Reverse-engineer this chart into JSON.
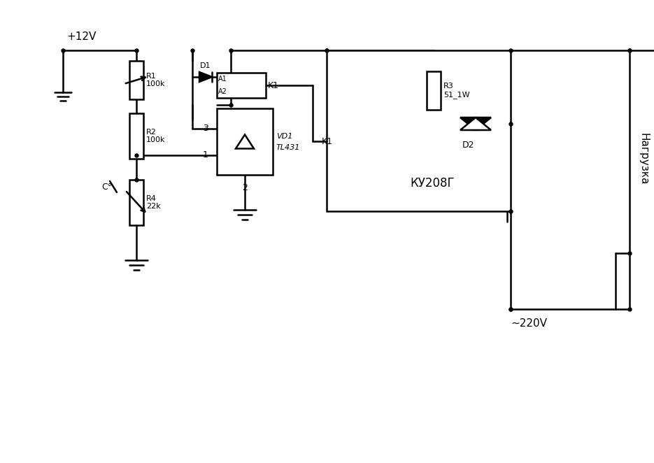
{
  "bg_color": "#ffffff",
  "line_color": "#000000",
  "line_width": 1.8,
  "dot_size": 6,
  "labels": {
    "plus12v": "+12V",
    "r1": "R1\n100k",
    "r2": "R2\n100k",
    "r4": "R4\n22k",
    "d1": "D1",
    "k1_relay": "K1",
    "k1_label_a1": "A1",
    "k1_label_a2": "A2",
    "vd1": "VD1\nTL431",
    "pin1": "1",
    "pin2": "2",
    "pin3": "3",
    "c_label": "C°",
    "r3": "R3\n51_1W",
    "d2": "D2",
    "ku208": "КУ208Г",
    "k1_switch": "K1",
    "nagr": "Нагрузка",
    "v220": "~220V"
  }
}
